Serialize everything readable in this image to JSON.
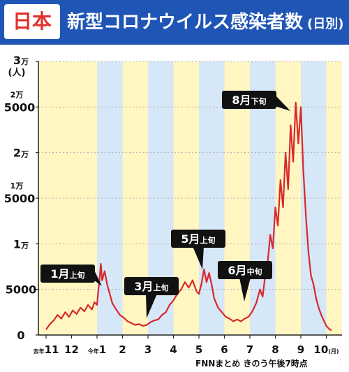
{
  "header": {
    "badge": "日本",
    "title": "新型コロナウイルス感染者数",
    "subtitle": "(日別)"
  },
  "footer": "FNNまとめ きのう午後7時点",
  "colors": {
    "header_bg": "#1f55b5",
    "badge_text": "#e0302a",
    "band_yellow": "#fff6c2",
    "band_blue": "#d6e7f7",
    "line": "#d8282f"
  },
  "chart_data": {
    "type": "line",
    "title": "新型コロナウイルス感染者数 (日別)",
    "xlabel": "",
    "ylabel": "(人)",
    "y_unit": "(人)",
    "x_unit": "(月)",
    "ylim": [
      0,
      30000
    ],
    "y_ticks": [
      {
        "value": 30000,
        "num": "3",
        "unit": "万"
      },
      {
        "value": 25000,
        "num": "2万",
        "unit": "5000"
      },
      {
        "value": 20000,
        "num": "2",
        "unit": "万"
      },
      {
        "value": 15000,
        "num": "1万",
        "unit": "5000"
      },
      {
        "value": 10000,
        "num": "1",
        "unit": "万"
      },
      {
        "value": 5000,
        "num": "5000",
        "unit": ""
      },
      {
        "value": 0,
        "num": "0",
        "unit": ""
      }
    ],
    "x_ticks": [
      {
        "month_index": 0,
        "prefix": "去年",
        "label": "11"
      },
      {
        "month_index": 1,
        "prefix": "",
        "label": "12"
      },
      {
        "month_index": 2,
        "prefix": "今年",
        "label": "1"
      },
      {
        "month_index": 3,
        "prefix": "",
        "label": "2"
      },
      {
        "month_index": 4,
        "prefix": "",
        "label": "3"
      },
      {
        "month_index": 5,
        "prefix": "",
        "label": "4"
      },
      {
        "month_index": 6,
        "prefix": "",
        "label": "5"
      },
      {
        "month_index": 7,
        "prefix": "",
        "label": "6"
      },
      {
        "month_index": 8,
        "prefix": "",
        "label": "7"
      },
      {
        "month_index": 9,
        "prefix": "",
        "label": "8"
      },
      {
        "month_index": 10,
        "prefix": "",
        "label": "9"
      },
      {
        "month_index": 11,
        "prefix": "",
        "label": "10"
      }
    ],
    "bands": [
      "yellow",
      "yellow",
      "blue",
      "yellow",
      "blue",
      "yellow",
      "blue",
      "yellow",
      "blue",
      "yellow",
      "blue"
    ],
    "series": [
      {
        "name": "",
        "x": [
          0,
          0.15,
          0.3,
          0.45,
          0.6,
          0.75,
          0.9,
          1.05,
          1.2,
          1.35,
          1.5,
          1.65,
          1.8,
          1.9,
          2.0,
          2.05,
          2.1,
          2.15,
          2.2,
          2.3,
          2.4,
          2.5,
          2.6,
          2.75,
          2.9,
          3.05,
          3.2,
          3.35,
          3.5,
          3.65,
          3.8,
          3.95,
          4.1,
          4.25,
          4.4,
          4.55,
          4.7,
          4.85,
          5.0,
          5.15,
          5.3,
          5.45,
          5.6,
          5.75,
          5.9,
          6.0,
          6.1,
          6.2,
          6.3,
          6.4,
          6.5,
          6.6,
          6.75,
          6.9,
          7.05,
          7.2,
          7.35,
          7.5,
          7.65,
          7.8,
          7.95,
          8.1,
          8.25,
          8.4,
          8.5,
          8.6,
          8.7,
          8.8,
          8.9,
          9.0,
          9.1,
          9.2,
          9.3,
          9.4,
          9.5,
          9.6,
          9.7,
          9.8,
          9.9,
          10.0,
          10.1,
          10.2,
          10.3,
          10.4,
          10.5,
          10.6,
          10.7,
          10.8,
          10.9,
          11.0,
          11.1,
          11.2
        ],
        "y": [
          600,
          1200,
          1600,
          2200,
          1800,
          2500,
          2000,
          2700,
          2300,
          3000,
          2600,
          3300,
          2800,
          3600,
          3300,
          4800,
          6200,
          7800,
          6000,
          7000,
          5500,
          4500,
          3500,
          2800,
          2200,
          1900,
          1500,
          1300,
          1100,
          1200,
          1000,
          1100,
          1400,
          1600,
          1700,
          2200,
          2500,
          3300,
          3800,
          4500,
          5000,
          5800,
          5200,
          6000,
          4800,
          4500,
          5600,
          7200,
          5800,
          6800,
          5500,
          4000,
          3000,
          2500,
          2000,
          1800,
          1500,
          1700,
          1500,
          1800,
          2000,
          2600,
          3500,
          5000,
          4200,
          6500,
          8000,
          11000,
          9500,
          14000,
          12000,
          17000,
          14000,
          20000,
          16000,
          23000,
          19000,
          25500,
          21000,
          25000,
          18000,
          13000,
          9000,
          6500,
          5500,
          4000,
          3000,
          2200,
          1600,
          1000,
          700,
          500
        ]
      }
    ],
    "annotations": [
      {
        "month": "1月",
        "part": "上旬"
      },
      {
        "month": "3月",
        "part": "上旬"
      },
      {
        "month": "5月",
        "part": "上旬"
      },
      {
        "month": "6月",
        "part": "中旬"
      },
      {
        "month": "8月",
        "part": "下旬"
      }
    ]
  }
}
